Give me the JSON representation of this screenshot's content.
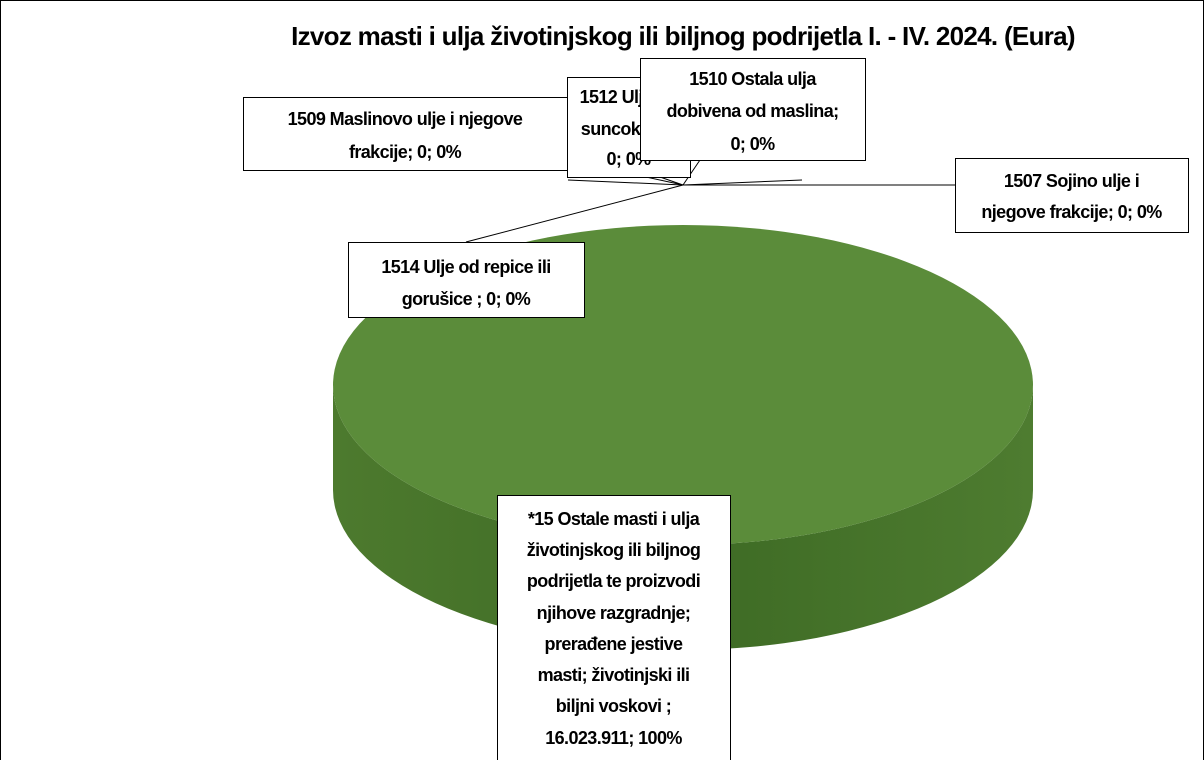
{
  "chart_data": {
    "type": "pie",
    "title": "Izvoz masti i ulja životinjskog ili biljnog podrijetla I. - IV. 2024. (Eura)",
    "values": [
      0,
      0,
      0,
      0,
      0,
      16023911
    ],
    "value_labels": [
      [
        "1507 Sojino ulje i",
        "njegove frakcije; 0; 0%"
      ],
      [
        "1509 Maslinovo ulje i njegove",
        "frakcije; 0; 0%"
      ],
      [
        "1510 Ostala ulja",
        "dobivena od maslina;",
        "0; 0%"
      ],
      [
        "1512 Ulje od",
        "suncokreta;",
        "0; 0%"
      ],
      [
        "1514 Ulje od repice ili",
        "gorušice ; 0; 0%"
      ],
      [
        "*15 Ostale masti i ulja",
        "životinjskog ili biljnog",
        "podrijetla te proizvodi",
        "njihove razgradnje;",
        "prerađene jestive",
        "masti; životinjski ili",
        "biljni voskovi  ;",
        "16.023.911; 100%"
      ]
    ],
    "color": "#5b8c3a"
  }
}
